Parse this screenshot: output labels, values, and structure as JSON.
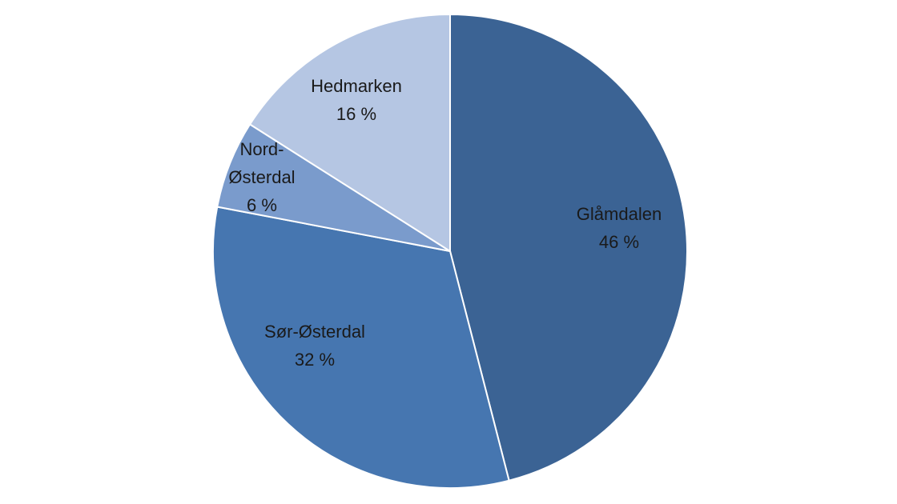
{
  "chart_data": {
    "type": "pie",
    "title": "",
    "slices": [
      {
        "label": "Glåmdalen",
        "value": 46,
        "value_label": "46 %",
        "color": "#3b6394"
      },
      {
        "label": "Sør-Østerdal",
        "value": 32,
        "value_label": "32 %",
        "color": "#4676b0"
      },
      {
        "label": "Nord-Østerdal",
        "label_lines": [
          "Nord-",
          "Østerdal"
        ],
        "value": 6,
        "value_label": "6 %",
        "color": "#7a9bcc"
      },
      {
        "label": "Hedmarken",
        "value": 16,
        "value_label": "16 %",
        "color": "#b5c6e3"
      }
    ],
    "start_angle_deg": 0,
    "direction": "clockwise"
  }
}
